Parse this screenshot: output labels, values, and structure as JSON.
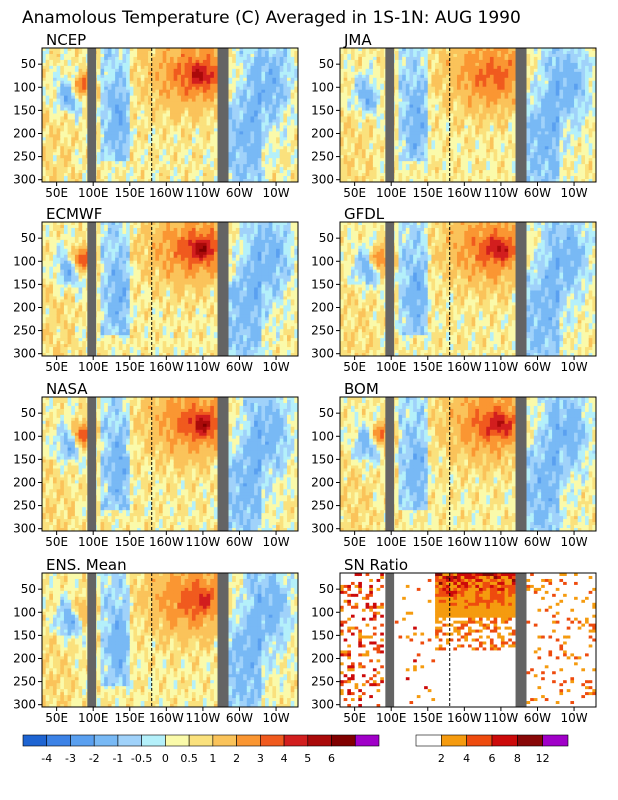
{
  "title": "Anamolous Temperature (C) Averaged in 1S-1N: AUG 1990",
  "panels": [
    "NCEP",
    "JMA",
    "ECMWF",
    "GFDL",
    "NASA",
    "BOM",
    "ENS. Mean",
    "SN Ratio"
  ],
  "chart_data": {
    "type": "heatmap",
    "title": "Anamolous Temperature (C) Averaged in 1S-1N: AUG 1990",
    "x_tick_labels": [
      "50E",
      "100E",
      "150E",
      "160W",
      "110W",
      "60W",
      "10W"
    ],
    "y_tick_labels": [
      "50",
      "100",
      "150",
      "200",
      "250",
      "300"
    ],
    "x_range_lon_east": [
      30,
      380
    ],
    "y_range": [
      305,
      15
    ],
    "dashed_line_lon_east": 180,
    "land_mask_lon_east": [
      [
        92,
        104
      ],
      [
        270,
        285
      ]
    ],
    "anomaly_colorbar": {
      "labels": [
        "-4",
        "-3",
        "-2",
        "-1",
        "-0.5",
        "0",
        "0.5",
        "1",
        "2",
        "3",
        "4",
        "5",
        "6"
      ],
      "colors": [
        "#1e64d2",
        "#3c82e6",
        "#5aa0f0",
        "#78b9f5",
        "#a0d2fa",
        "#b4f0fa",
        "#fafaaa",
        "#fae17d",
        "#fac35a",
        "#fa9632",
        "#f05a1e",
        "#d21e1e",
        "#aa0a0a",
        "#800000",
        "#a000c8"
      ]
    },
    "sn_colorbar": {
      "labels": [
        "2",
        "4",
        "6",
        "8",
        "12"
      ],
      "colors": [
        "#ffffff",
        "#f59b0f",
        "#ee4b0e",
        "#cc0a0a",
        "#880808",
        "#a000c8"
      ]
    }
  }
}
